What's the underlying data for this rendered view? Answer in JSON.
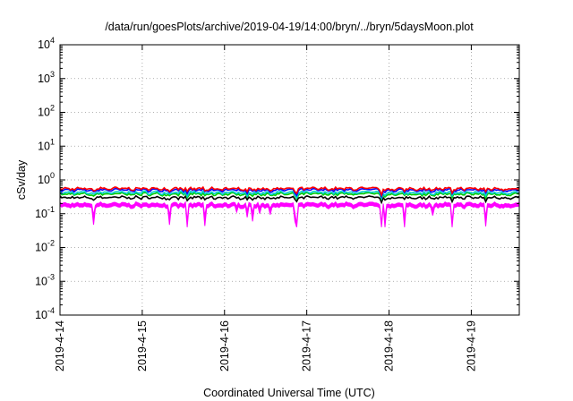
{
  "chart_data": {
    "type": "area",
    "title": "/data/run/goesPlots/archive/2019-04-19/14:00/bryn/../bryn/5daysMoon.plot",
    "xlabel": "Coordinated Universal Time (UTC)",
    "ylabel": "cSv/day",
    "yscale": "log",
    "ylim": [
      0.0001,
      10000
    ],
    "y_ticks": [
      {
        "base": "10",
        "exp": "4",
        "value": 10000
      },
      {
        "base": "10",
        "exp": "3",
        "value": 1000
      },
      {
        "base": "10",
        "exp": "2",
        "value": 100
      },
      {
        "base": "10",
        "exp": "1",
        "value": 10
      },
      {
        "base": "10",
        "exp": "0",
        "value": 1
      },
      {
        "base": "10",
        "exp": "-1",
        "value": 0.1
      },
      {
        "base": "10",
        "exp": "-2",
        "value": 0.01
      },
      {
        "base": "10",
        "exp": "-3",
        "value": 0.001
      },
      {
        "base": "10",
        "exp": "-4",
        "value": 0.0001
      }
    ],
    "xlim": [
      "2019-04-14",
      "2019-04-19 14:00"
    ],
    "x_ticks": [
      "2019-4-14",
      "2019-4-15",
      "2019-4-16",
      "2019-4-17",
      "2019-4-18",
      "2019-4-19"
    ],
    "grid": true,
    "series": [
      {
        "color": "#ff00ff",
        "level": 0.2,
        "style": "filled band"
      },
      {
        "color": "#000000",
        "level": 0.3
      },
      {
        "color": "#00cc00",
        "level": 0.38
      },
      {
        "color": "#00cccc",
        "level": 0.42
      },
      {
        "color": "#0000ff",
        "level": 0.5
      },
      {
        "color": "#ff0000",
        "level": 0.55
      }
    ]
  }
}
